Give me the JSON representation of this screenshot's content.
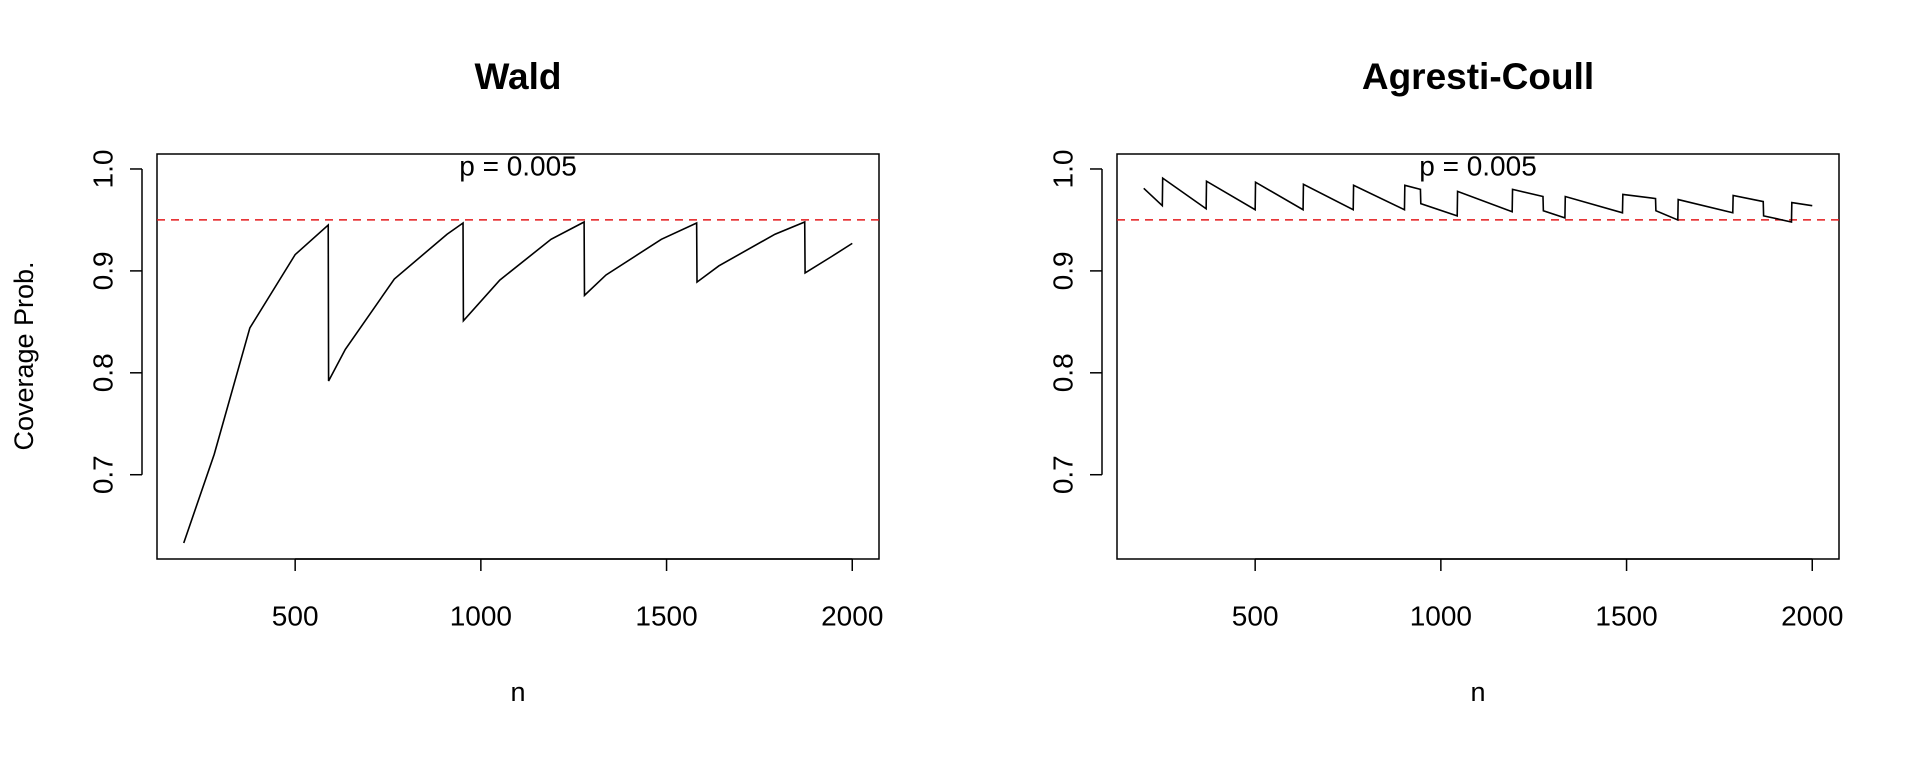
{
  "chart_data": [
    {
      "type": "line",
      "title": "Wald",
      "subtitle": "p = 0.005",
      "xlabel": "n",
      "ylabel": "Coverage Prob.",
      "x": [
        200,
        282,
        378,
        500,
        589,
        590,
        635,
        767,
        909,
        952,
        953,
        1051,
        1189,
        1278,
        1279,
        1337,
        1486,
        1581,
        1582,
        1641,
        1792,
        1872,
        1873,
        1944,
        2000
      ],
      "values": [
        0.633,
        0.72,
        0.844,
        0.916,
        0.945,
        0.792,
        0.823,
        0.892,
        0.936,
        0.947,
        0.851,
        0.891,
        0.931,
        0.948,
        0.876,
        0.896,
        0.931,
        0.947,
        0.889,
        0.905,
        0.936,
        0.948,
        0.898,
        0.914,
        0.927
      ],
      "color": "#000000",
      "reference_line": 0.95,
      "reference_color": "#e41a1c",
      "xlim": [
        128,
        2072
      ],
      "ylim": [
        0.6173,
        1.0147
      ],
      "xticks": [
        500,
        1000,
        1500,
        2000
      ],
      "yticks": [
        0.7,
        0.8,
        0.9,
        {
          "value": 1,
          "label": "1.0"
        }
      ]
    },
    {
      "type": "line",
      "title": "Agresti-Coull",
      "subtitle": "p = 0.005",
      "xlabel": "n",
      "x": [
        200,
        250,
        251,
        368,
        369,
        500,
        501,
        629,
        630,
        764,
        765,
        902,
        903,
        945,
        946,
        1044,
        1045,
        1192,
        1193,
        1275,
        1276,
        1334,
        1335,
        1489,
        1490,
        1578,
        1579,
        1638,
        1639,
        1786,
        1787,
        1868,
        1869,
        1944,
        1945,
        2000
      ],
      "values": [
        0.981,
        0.964,
        0.991,
        0.961,
        0.988,
        0.96,
        0.987,
        0.96,
        0.985,
        0.96,
        0.984,
        0.96,
        0.984,
        0.98,
        0.966,
        0.954,
        0.978,
        0.958,
        0.98,
        0.973,
        0.959,
        0.952,
        0.973,
        0.957,
        0.975,
        0.971,
        0.959,
        0.95,
        0.97,
        0.957,
        0.974,
        0.968,
        0.954,
        0.948,
        0.967,
        0.964
      ],
      "color": "#000000",
      "reference_line": 0.95,
      "reference_color": "#e41a1c",
      "xlim": [
        128,
        2072
      ],
      "ylim": [
        0.6173,
        1.0147
      ],
      "xticks": [
        500,
        1000,
        1500,
        2000
      ],
      "yticks": [
        0.7,
        0.8,
        0.9,
        {
          "value": 1,
          "label": "1.0"
        }
      ]
    }
  ]
}
